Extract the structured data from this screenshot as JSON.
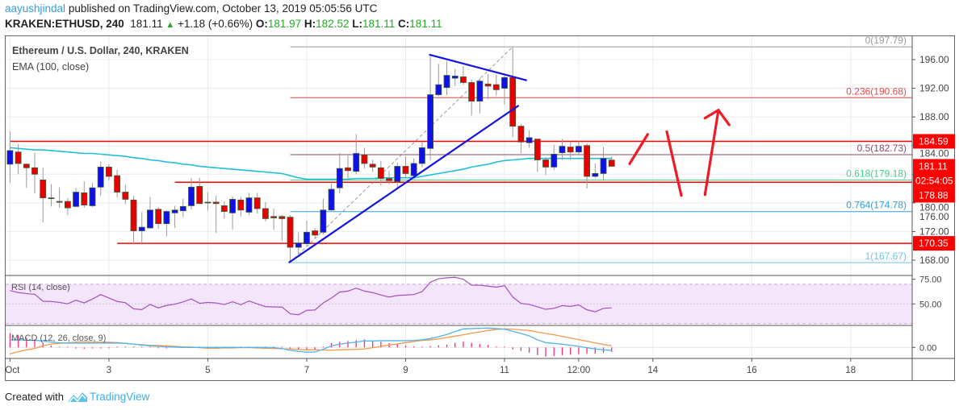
{
  "header": {
    "author": "aayushjindal",
    "published_text": "published on TradingView.com, October 13, 2019 05:05:56 UTC",
    "symbol": "KRAKEN:ETHUSD, 240",
    "last_price": "181.11",
    "change": "+1.18 (+0.66%)",
    "change_direction": "up",
    "o_label": "O:",
    "o": "181.97",
    "h_label": "H:",
    "h": "182.52",
    "l_label": "L:",
    "l": "181.11",
    "c_label": "C:",
    "c": "181.11"
  },
  "legend": {
    "title": "Ethereum / U.S. Dollar, 240, KRAKEN",
    "ema_label": "EMA (100, close)",
    "rsi_label": "RSI (14, close)",
    "macd_label": "MACD (12, 26, close, 9)"
  },
  "colors": {
    "up": "#1010e8",
    "down": "#e80000",
    "candle_border": "#3b5a3b",
    "ema": "#1fbfd8",
    "hline": "#ff0000",
    "trendline": "#1414e0",
    "rsi": "#a64dc0",
    "rsi_band": "#f3e6fb",
    "macd": "#4fb4f0",
    "signal": "#f7984a",
    "histogram": "#ff2a7a",
    "arrow": "#ee1c25"
  },
  "price_axis": [
    "196.00",
    "192.00",
    "188.00",
    "184.00",
    "180.00",
    "176.00",
    "172.00",
    "168.00"
  ],
  "time_axis": [
    {
      "label": "Oct",
      "t": "10-01 00:00"
    },
    {
      "label": "3",
      "t": "10-03 00:00"
    },
    {
      "label": "5",
      "t": "10-05 00:00"
    },
    {
      "label": "7",
      "t": "10-07 00:00"
    },
    {
      "label": "9",
      "t": "10-09 00:00"
    },
    {
      "label": "11",
      "t": "10-11 00:00"
    },
    {
      "label": "12:00",
      "t": "10-12 12:00"
    },
    {
      "label": "14",
      "t": "10-14 00:00"
    },
    {
      "label": "16",
      "t": "10-16 00:00"
    },
    {
      "label": "18",
      "t": "10-18 00:00"
    }
  ],
  "rsi_axis": [
    "75.00",
    "50.00"
  ],
  "macd_axis": [
    "0.00"
  ],
  "price_labels": [
    {
      "price": 184.59,
      "text": "184.59"
    },
    {
      "price": 181.11,
      "text": "181.11",
      "countdown": "02:54:05"
    },
    {
      "price": 178.88,
      "text": "178.88"
    },
    {
      "price": 170.35,
      "text": "170.35"
    }
  ],
  "horizontal_lines": [
    {
      "price": 184.59,
      "from": "10-01 00:00"
    },
    {
      "price": 178.88,
      "from": "10-04 08:00"
    },
    {
      "price": 170.35,
      "from": "10-03 04:00"
    }
  ],
  "fibonacci": {
    "from": {
      "t": "10-06 16:00",
      "price": 167.67
    },
    "to": {
      "t": "10-11 04:00",
      "price": 197.79
    },
    "levels": [
      {
        "ratio": "0",
        "price": "197.79",
        "color": "#9a9a9a"
      },
      {
        "ratio": "0.236",
        "price": "190.68",
        "color": "#e0474c"
      },
      {
        "ratio": "0.5",
        "price": "182.73",
        "color": "#8a4b6a"
      },
      {
        "ratio": "0.618",
        "price": "179.18",
        "color": "#3fcf8e"
      },
      {
        "ratio": "0.764",
        "price": "174.78",
        "color": "#2f9fe0"
      },
      {
        "ratio": "1",
        "price": "167.67",
        "color": "#6fc3f0"
      }
    ]
  },
  "trendlines": [
    {
      "name": "rising-support",
      "p1": {
        "t": "10-06 15:15",
        "price": 167.65
      },
      "p2": {
        "t": "10-11 06:55",
        "price": 189.6
      }
    },
    {
      "name": "falling-resistance",
      "p1": {
        "t": "10-09 11:26",
        "price": 196.7
      },
      "p2": {
        "t": "10-11 10:50",
        "price": 193.1
      }
    }
  ],
  "drawn_arrows": [
    [
      {
        "t": "10-13 12:43",
        "price": 181.46
      },
      {
        "t": "10-13 21:29",
        "price": 185.57
      }
    ],
    [
      {
        "t": "10-14 06:45",
        "price": 185.95
      },
      {
        "t": "10-14 13:48",
        "price": 177.02
      }
    ],
    [
      {
        "t": "10-15 01:17",
        "price": 177.14
      },
      {
        "t": "10-15 07:48",
        "price": 188.95
      }
    ],
    [
      {
        "t": "10-15 01:17",
        "price": 187.83
      },
      {
        "t": "10-15 07:48",
        "price": 188.95
      },
      {
        "t": "10-15 13:02",
        "price": 186.89
      }
    ]
  ],
  "chart_data": {
    "type": "candlestick",
    "title": "Ethereum / U.S. Dollar, 240, KRAKEN",
    "ylim": [
      166.5,
      199.5
    ],
    "xlim": [
      "10-01 00:00",
      "10-19 06:00"
    ],
    "grid": true,
    "candle_fields": [
      "t",
      "open",
      "high",
      "low",
      "close"
    ],
    "candles": [
      [
        "10-01 00:00",
        181.4,
        186.0,
        178.8,
        183.3
      ],
      [
        "10-01 04:00",
        183.1,
        184.2,
        180.0,
        181.5
      ],
      [
        "10-01 08:00",
        181.4,
        181.5,
        178.1,
        180.9
      ],
      [
        "10-01 12:00",
        180.9,
        183.0,
        177.3,
        180.0
      ],
      [
        "10-01 16:00",
        179.2,
        180.9,
        173.3,
        176.7
      ],
      [
        "10-01 20:00",
        176.7,
        178.6,
        175.5,
        176.6
      ],
      [
        "10-02 00:00",
        176.2,
        178.1,
        175.3,
        176.1
      ],
      [
        "10-02 04:00",
        176.2,
        176.7,
        174.3,
        175.3
      ],
      [
        "10-02 08:00",
        175.5,
        178.1,
        175.4,
        177.5
      ],
      [
        "10-02 12:00",
        177.4,
        179.0,
        175.3,
        175.7
      ],
      [
        "10-02 16:00",
        175.6,
        178.8,
        175.4,
        178.1
      ],
      [
        "10-02 20:00",
        178.2,
        181.8,
        177.0,
        181.0
      ],
      [
        "10-03 00:00",
        181.0,
        181.4,
        179.1,
        179.7
      ],
      [
        "10-03 04:00",
        179.8,
        180.6,
        176.8,
        177.5
      ],
      [
        "10-03 08:00",
        177.5,
        178.5,
        175.8,
        176.5
      ],
      [
        "10-03 12:00",
        176.4,
        177.0,
        170.2,
        172.1
      ],
      [
        "10-03 16:00",
        172.1,
        174.7,
        170.2,
        172.6
      ],
      [
        "10-03 20:00",
        172.5,
        176.8,
        172.4,
        175.0
      ],
      [
        "10-04 00:00",
        175.1,
        175.4,
        172.4,
        173.1
      ],
      [
        "10-04 04:00",
        173.1,
        175.0,
        171.3,
        174.8
      ],
      [
        "10-04 08:00",
        174.6,
        175.6,
        172.5,
        175.0
      ],
      [
        "10-04 12:00",
        174.9,
        176.6,
        174.0,
        175.5
      ],
      [
        "10-04 16:00",
        175.6,
        179.5,
        175.1,
        178.2
      ],
      [
        "10-04 20:00",
        178.3,
        179.5,
        175.9,
        175.9
      ],
      [
        "10-05 00:00",
        176.1,
        177.5,
        174.9,
        176.0
      ],
      [
        "10-05 04:00",
        176.1,
        177.0,
        171.8,
        175.9
      ],
      [
        "10-05 08:00",
        175.6,
        176.2,
        173.8,
        174.8
      ],
      [
        "10-05 12:00",
        174.6,
        176.9,
        172.3,
        176.5
      ],
      [
        "10-05 16:00",
        176.4,
        176.8,
        174.1,
        175.0
      ],
      [
        "10-05 20:00",
        174.7,
        177.4,
        174.3,
        176.7
      ],
      [
        "10-06 00:00",
        176.7,
        177.4,
        174.5,
        175.2
      ],
      [
        "10-06 04:00",
        175.2,
        176.1,
        173.4,
        173.8
      ],
      [
        "10-06 08:00",
        174.1,
        175.2,
        172.2,
        173.9
      ],
      [
        "10-06 12:00",
        174.1,
        174.3,
        170.7,
        173.8
      ],
      [
        "10-06 16:00",
        174.0,
        174.3,
        167.67,
        169.8
      ],
      [
        "10-06 20:00",
        169.8,
        171.9,
        168.8,
        170.4
      ],
      [
        "10-07 00:00",
        170.3,
        173.5,
        170.0,
        171.9
      ],
      [
        "10-07 04:00",
        172.1,
        172.5,
        171.0,
        171.5
      ],
      [
        "10-07 08:00",
        171.9,
        176.6,
        171.6,
        175.0
      ],
      [
        "10-07 12:00",
        175.0,
        178.7,
        174.9,
        177.9
      ],
      [
        "10-07 16:00",
        178.1,
        183.0,
        177.3,
        180.8
      ],
      [
        "10-07 20:00",
        180.9,
        182.6,
        179.1,
        180.5
      ],
      [
        "10-08 00:00",
        180.4,
        185.6,
        180.0,
        182.9
      ],
      [
        "10-08 04:00",
        182.7,
        183.7,
        180.8,
        181.5
      ],
      [
        "10-08 08:00",
        181.4,
        182.0,
        180.3,
        181.0
      ],
      [
        "10-08 12:00",
        180.9,
        181.9,
        178.4,
        179.4
      ],
      [
        "10-08 16:00",
        179.4,
        180.5,
        178.6,
        179.1
      ],
      [
        "10-08 20:00",
        179.0,
        181.6,
        177.9,
        181.1
      ],
      [
        "10-09 00:00",
        181.1,
        182.5,
        179.5,
        180.1
      ],
      [
        "10-09 04:00",
        179.8,
        182.2,
        179.3,
        181.5
      ],
      [
        "10-09 08:00",
        181.5,
        184.5,
        181.0,
        183.7
      ],
      [
        "10-09 12:00",
        183.6,
        196.5,
        181.9,
        191.1
      ],
      [
        "10-09 16:00",
        191.1,
        195.4,
        190.9,
        192.5
      ],
      [
        "10-09 20:00",
        192.1,
        195.8,
        191.0,
        193.8
      ],
      [
        "10-10 00:00",
        193.4,
        194.7,
        192.3,
        193.7
      ],
      [
        "10-10 04:00",
        193.6,
        195.1,
        192.5,
        192.8
      ],
      [
        "10-10 08:00",
        192.8,
        193.2,
        188.2,
        190.2
      ],
      [
        "10-10 12:00",
        190.2,
        193.4,
        188.5,
        193.0
      ],
      [
        "10-10 16:00",
        192.6,
        194.0,
        190.5,
        192.3
      ],
      [
        "10-10 20:00",
        192.5,
        193.9,
        191.0,
        191.8
      ],
      [
        "10-11 00:00",
        192.0,
        193.8,
        189.7,
        193.5
      ],
      [
        "10-11 04:00",
        193.5,
        197.79,
        185.2,
        186.7
      ],
      [
        "10-11 08:00",
        186.7,
        187.0,
        182.9,
        184.5
      ],
      [
        "10-11 12:00",
        184.4,
        186.1,
        183.7,
        185.1
      ],
      [
        "10-11 16:00",
        184.9,
        184.9,
        180.3,
        182.0
      ],
      [
        "10-11 20:00",
        182.0,
        182.4,
        179.9,
        181.0
      ],
      [
        "10-12 00:00",
        181.0,
        184.1,
        180.6,
        182.8
      ],
      [
        "10-12 04:00",
        183.0,
        184.9,
        182.0,
        183.9
      ],
      [
        "10-12 08:00",
        183.8,
        184.6,
        182.0,
        183.1
      ],
      [
        "10-12 12:00",
        183.1,
        184.6,
        182.7,
        183.9
      ],
      [
        "10-12 16:00",
        184.0,
        184.3,
        178.0,
        179.7
      ],
      [
        "10-12 20:00",
        179.7,
        181.5,
        179.5,
        180.1
      ],
      [
        "10-13 00:00",
        180.1,
        183.8,
        179.2,
        182.2
      ],
      [
        "10-13 04:00",
        181.97,
        182.52,
        181.11,
        181.11
      ]
    ],
    "ema_100": [
      183.7,
      183.6,
      183.5,
      183.4,
      183.4,
      183.3,
      183.2,
      183.1,
      183.0,
      182.9,
      182.9,
      182.8,
      182.7,
      182.6,
      182.5,
      182.3,
      182.2,
      182.0,
      181.9,
      181.7,
      181.6,
      181.4,
      181.3,
      181.1,
      181.0,
      180.9,
      180.8,
      180.7,
      180.6,
      180.5,
      180.4,
      180.3,
      180.2,
      180.1,
      179.8,
      179.5,
      179.3,
      179.3,
      179.3,
      179.3,
      179.3,
      179.3,
      179.4,
      179.4,
      179.4,
      179.5,
      179.5,
      179.5,
      179.5,
      179.5,
      179.7,
      179.9,
      180.1,
      180.3,
      180.5,
      180.7,
      181.0,
      181.2,
      181.4,
      181.7,
      181.9,
      182.0,
      182.1,
      182.2,
      182.2,
      182.2,
      182.2,
      182.2,
      182.2,
      182.2,
      182.2,
      182.2,
      182.2,
      182.2
    ],
    "rsi": {
      "ylim": [
        22,
        80
      ],
      "band": [
        30,
        70
      ],
      "values": [
        63.6,
        61.5,
        60.5,
        59.8,
        52.7,
        52.5,
        51.5,
        50.1,
        53.8,
        51,
        55,
        59.5,
        56,
        52.5,
        51.2,
        45,
        44.2,
        49.5,
        46,
        48.5,
        49.8,
        52,
        55,
        50.6,
        51.5,
        51,
        49.4,
        52.2,
        49.2,
        53,
        50,
        47.3,
        47,
        46.8,
        40,
        39,
        43.5,
        43.8,
        51,
        56,
        62,
        63,
        66,
        63,
        61.5,
        59,
        57,
        58.5,
        59,
        59.5,
        62.5,
        72,
        75.5,
        76.5,
        77,
        75,
        69,
        69,
        68,
        67,
        68.5,
        57,
        50.5,
        49.5,
        47,
        44.5,
        45.5,
        48.3,
        47.5,
        49,
        44,
        42,
        45.5,
        46
      ]
    },
    "macd": {
      "macd": [
        1.61,
        1.56,
        1.5,
        1.44,
        1.33,
        1.11,
        0.94,
        0.89,
        0.89,
        0.89,
        0.89,
        0.89,
        0.89,
        0.89,
        0.83,
        0.67,
        0.5,
        0.33,
        0.22,
        0.11,
        0.06,
        0,
        0,
        0,
        0,
        0,
        0,
        0,
        0,
        0,
        0,
        0,
        -0.06,
        -0.22,
        -0.61,
        -0.83,
        -1.0,
        -0.94,
        -0.39,
        0.33,
        0.67,
        0.89,
        1.11,
        1.33,
        1.33,
        1.39,
        1.39,
        1.39,
        1.39,
        1.44,
        1.56,
        1.83,
        2.22,
        2.67,
        3.28,
        3.83,
        3.89,
        3.94,
        4.0,
        3.89,
        3.78,
        3.33,
        2.89,
        2.39,
        1.56,
        1.0,
        0.83,
        0.67,
        0.44,
        0.22,
        -0.06,
        -0.33,
        -0.5,
        -0.61
      ],
      "signal": [
        -1.33,
        -0.89,
        -0.5,
        -0.22,
        0.33,
        0.72,
        0.83,
        0.94,
        1.11,
        1.17,
        1.11,
        1.11,
        1.06,
        1.0,
        0.83,
        0.67,
        0.56,
        0.44,
        0.39,
        0.33,
        0.22,
        0.11,
        0.06,
        -0.06,
        -0.17,
        -0.17,
        -0.11,
        -0.11,
        -0.06,
        -0.06,
        -0.11,
        -0.17,
        -0.22,
        -0.28,
        -0.33,
        -0.44,
        -0.5,
        -0.5,
        -0.56,
        -0.56,
        -0.5,
        -0.44,
        -0.39,
        -0.33,
        -0.06,
        0.22,
        0.5,
        0.72,
        1.0,
        1.22,
        1.44,
        1.56,
        1.78,
        2.06,
        2.33,
        2.61,
        2.94,
        3.22,
        3.5,
        3.72,
        3.83,
        3.78,
        3.61,
        3.5,
        3.17,
        2.89,
        2.61,
        2.28,
        1.94,
        1.61,
        1.28,
        0.94,
        0.61,
        0.33
      ]
    }
  },
  "footer": {
    "created_with": "Created with",
    "brand": "TradingView"
  }
}
